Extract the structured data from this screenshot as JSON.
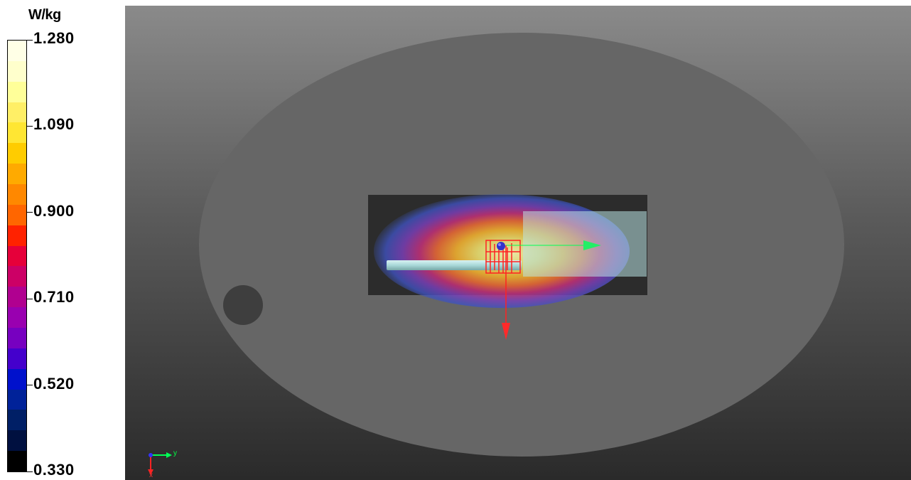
{
  "legend": {
    "unit": "W/kg",
    "ticks": [
      "1.280",
      "1.090",
      "0.900",
      "0.710",
      "0.520",
      "0.330"
    ],
    "colors_top_to_bottom": [
      "#ffffe6",
      "#ffffcc",
      "#ffff99",
      "#ffef66",
      "#ffe633",
      "#ffcc00",
      "#ffaa00",
      "#ff8800",
      "#ff6600",
      "#ff2200",
      "#e6003a",
      "#cc0066",
      "#b00090",
      "#9900b0",
      "#7700c0",
      "#4400cc",
      "#0011cc",
      "#002299",
      "#001f66",
      "#001040",
      "#000000"
    ]
  },
  "viewport": {
    "axis_labels": {
      "y": "y",
      "x": "x"
    },
    "colors": {
      "phantom": "#666666",
      "box": "#2c2c2c",
      "y_axis": "#00ff55",
      "x_axis": "#ff2222",
      "origin_marker": "#3333cc"
    },
    "icons": [
      "axis-triad-icon",
      "orientation-triad-icon"
    ]
  }
}
